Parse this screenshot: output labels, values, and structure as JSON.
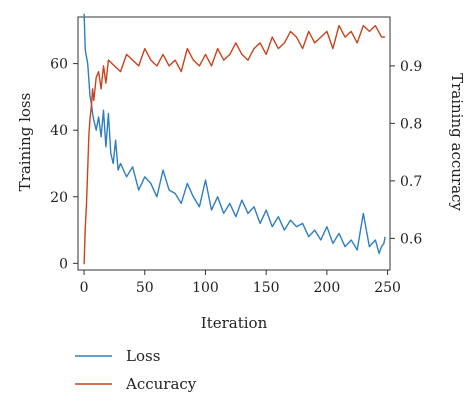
{
  "chart_data": {
    "type": "line",
    "title": "",
    "xlabel": "Iteration",
    "ylabel_left": "Training loss",
    "ylabel_right": "Training accuracy",
    "xlim": [
      -5,
      252
    ],
    "ylim_left": [
      -2,
      74
    ],
    "ylim_right": [
      0.545,
      0.985
    ],
    "x_ticks": [
      0,
      50,
      100,
      150,
      200,
      250
    ],
    "y_ticks_left": [
      0,
      20,
      40,
      60
    ],
    "y_ticks_right": [
      0.6,
      0.7,
      0.8,
      0.9
    ],
    "y_tick_labels_right": [
      "0.6",
      "0.7",
      "0.8",
      "0.9"
    ],
    "grid": false,
    "legend_position": "bottom-left",
    "series": [
      {
        "name": "Loss",
        "color": "#2f7ec1",
        "axis": "left",
        "x": [
          0,
          1,
          2,
          3,
          4,
          5,
          6,
          7,
          8,
          10,
          12,
          14,
          16,
          18,
          20,
          22,
          24,
          26,
          28,
          30,
          35,
          40,
          45,
          50,
          55,
          60,
          65,
          70,
          75,
          80,
          85,
          90,
          95,
          100,
          105,
          110,
          115,
          120,
          125,
          130,
          135,
          140,
          145,
          150,
          155,
          160,
          165,
          170,
          175,
          180,
          185,
          190,
          195,
          200,
          205,
          210,
          215,
          220,
          225,
          230,
          235,
          240,
          243,
          245,
          247,
          248
        ],
        "y": [
          75,
          64,
          62,
          60,
          55,
          50,
          48,
          45,
          43,
          40,
          44,
          38,
          46,
          35,
          45,
          33,
          30,
          37,
          28,
          30,
          26,
          29,
          22,
          26,
          24,
          20,
          28,
          22,
          21,
          18,
          24,
          20,
          17,
          25,
          16,
          20,
          15,
          18,
          14,
          19,
          15,
          17,
          12,
          16,
          11,
          14,
          10,
          13,
          11,
          12,
          8,
          10,
          7,
          11,
          6,
          9,
          5,
          7,
          4,
          15,
          5,
          7,
          3,
          5,
          6,
          8
        ]
      },
      {
        "name": "Accuracy",
        "color": "#c9431c",
        "axis": "right",
        "x": [
          0,
          1,
          2,
          3,
          4,
          5,
          6,
          7,
          8,
          10,
          12,
          14,
          16,
          18,
          20,
          25,
          30,
          35,
          40,
          45,
          50,
          55,
          60,
          65,
          70,
          75,
          80,
          85,
          90,
          95,
          100,
          105,
          110,
          115,
          120,
          125,
          130,
          135,
          140,
          145,
          150,
          155,
          160,
          165,
          170,
          175,
          180,
          185,
          190,
          195,
          200,
          205,
          210,
          215,
          220,
          225,
          230,
          235,
          240,
          245,
          248
        ],
        "y": [
          0.555,
          0.62,
          0.66,
          0.72,
          0.78,
          0.81,
          0.83,
          0.86,
          0.84,
          0.88,
          0.89,
          0.86,
          0.9,
          0.87,
          0.91,
          0.9,
          0.89,
          0.92,
          0.91,
          0.9,
          0.93,
          0.91,
          0.9,
          0.92,
          0.9,
          0.91,
          0.89,
          0.93,
          0.91,
          0.9,
          0.92,
          0.9,
          0.93,
          0.91,
          0.92,
          0.94,
          0.92,
          0.91,
          0.93,
          0.94,
          0.92,
          0.95,
          0.93,
          0.94,
          0.96,
          0.95,
          0.93,
          0.96,
          0.94,
          0.95,
          0.96,
          0.93,
          0.97,
          0.95,
          0.96,
          0.94,
          0.97,
          0.96,
          0.97,
          0.95,
          0.95
        ]
      }
    ]
  }
}
